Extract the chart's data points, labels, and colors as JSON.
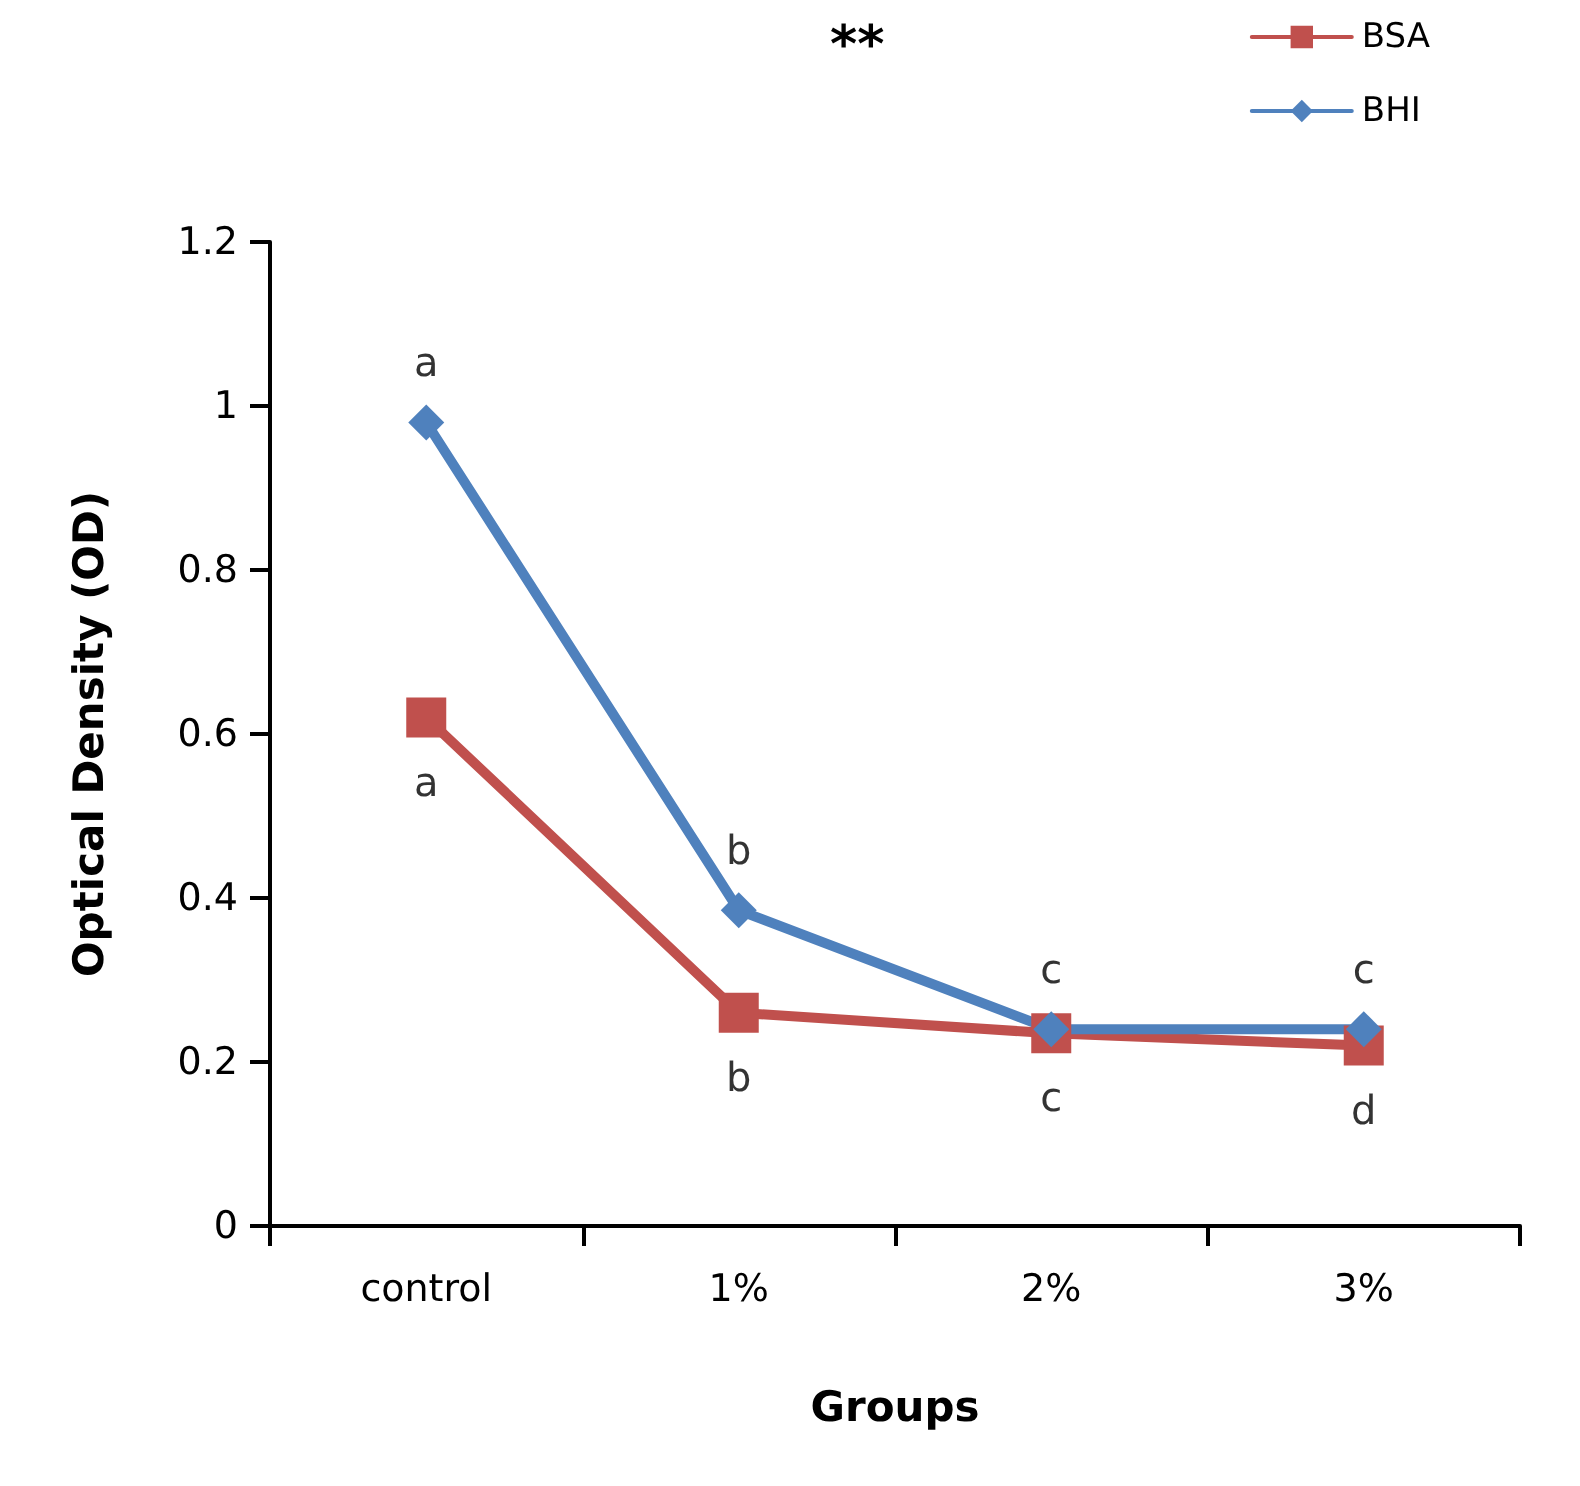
{
  "chart_data": {
    "type": "line",
    "xlabel": "Groups",
    "ylabel": "Optical Density (OD)",
    "categories": [
      "control",
      "1%",
      "2%",
      "3%"
    ],
    "series": [
      {
        "name": "BSA",
        "color": "#c0504d",
        "marker": "square",
        "values": [
          0.62,
          0.26,
          0.235,
          0.22
        ]
      },
      {
        "name": "BHI",
        "color": "#4f81bd",
        "marker": "diamond",
        "values": [
          0.98,
          0.385,
          0.24,
          0.24
        ]
      }
    ],
    "ylim": [
      0,
      1.2
    ],
    "yticks": [
      0,
      0.2,
      0.4,
      0.6,
      0.8,
      1,
      1.2
    ],
    "grid": false,
    "legend": "top right",
    "annotations": [
      "**",
      {
        "text": "a",
        "x": "control",
        "y": 0.98
      },
      {
        "text": "a",
        "x": "control",
        "y": 0.62
      },
      {
        "text": "b",
        "x": "1%",
        "y": 0.385
      },
      {
        "text": "b",
        "x": "1%",
        "y": 0.26
      },
      {
        "text": "c",
        "x": "2%",
        "y": 0.24
      },
      {
        "text": "c",
        "x": "2%",
        "y": 0.235
      },
      {
        "text": "c",
        "x": "3%",
        "y": 0.24
      },
      {
        "text": "d",
        "x": "3%",
        "y": 0.22
      }
    ]
  }
}
